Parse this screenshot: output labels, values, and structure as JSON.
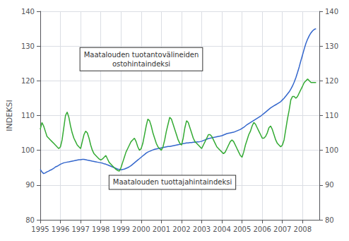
{
  "chart_data": {
    "type": "line",
    "ylabel": "INDEKSI",
    "xlim": [
      1995.0,
      2008.83
    ],
    "xticks": [
      1995,
      1996,
      1997,
      1998,
      1999,
      2000,
      2001,
      2002,
      2003,
      2004,
      2005,
      2006,
      2007,
      2008
    ],
    "ylim": [
      80,
      140
    ],
    "yticks": [
      80,
      90,
      100,
      110,
      120,
      130,
      140
    ],
    "y2lim": [
      80,
      140
    ],
    "y2ticks": [
      80,
      90,
      100,
      110,
      120,
      130,
      140
    ],
    "grid": true,
    "x": [
      1995.0,
      1995.083,
      1995.167,
      1995.25,
      1995.333,
      1995.417,
      1995.5,
      1995.583,
      1995.667,
      1995.75,
      1995.833,
      1995.917,
      1996.0,
      1996.083,
      1996.167,
      1996.25,
      1996.333,
      1996.417,
      1996.5,
      1996.583,
      1996.667,
      1996.75,
      1996.833,
      1996.917,
      1997.0,
      1997.083,
      1997.167,
      1997.25,
      1997.333,
      1997.417,
      1997.5,
      1997.583,
      1997.667,
      1997.75,
      1997.833,
      1997.917,
      1998.0,
      1998.083,
      1998.167,
      1998.25,
      1998.333,
      1998.417,
      1998.5,
      1998.583,
      1998.667,
      1998.75,
      1998.833,
      1998.917,
      1999.0,
      1999.083,
      1999.167,
      1999.25,
      1999.333,
      1999.417,
      1999.5,
      1999.583,
      1999.667,
      1999.75,
      1999.833,
      1999.917,
      2000.0,
      2000.083,
      2000.167,
      2000.25,
      2000.333,
      2000.417,
      2000.5,
      2000.583,
      2000.667,
      2000.75,
      2000.833,
      2000.917,
      2001.0,
      2001.083,
      2001.167,
      2001.25,
      2001.333,
      2001.417,
      2001.5,
      2001.583,
      2001.667,
      2001.75,
      2001.833,
      2001.917,
      2002.0,
      2002.083,
      2002.167,
      2002.25,
      2002.333,
      2002.417,
      2002.5,
      2002.583,
      2002.667,
      2002.75,
      2002.833,
      2002.917,
      2003.0,
      2003.083,
      2003.167,
      2003.25,
      2003.333,
      2003.417,
      2003.5,
      2003.583,
      2003.667,
      2003.75,
      2003.833,
      2003.917,
      2004.0,
      2004.083,
      2004.167,
      2004.25,
      2004.333,
      2004.417,
      2004.5,
      2004.583,
      2004.667,
      2004.75,
      2004.833,
      2004.917,
      2005.0,
      2005.083,
      2005.167,
      2005.25,
      2005.333,
      2005.417,
      2005.5,
      2005.583,
      2005.667,
      2005.75,
      2005.833,
      2005.917,
      2006.0,
      2006.083,
      2006.167,
      2006.25,
      2006.333,
      2006.417,
      2006.5,
      2006.583,
      2006.667,
      2006.75,
      2006.833,
      2006.917,
      2007.0,
      2007.083,
      2007.167,
      2007.25,
      2007.333,
      2007.417,
      2007.5,
      2007.583,
      2007.667,
      2007.75,
      2007.833,
      2007.917,
      2008.0,
      2008.083,
      2008.167,
      2008.25,
      2008.333,
      2008.417,
      2008.5,
      2008.583,
      2008.667
    ],
    "series": [
      {
        "color": "#3366CC",
        "values": [
          94.5,
          93.8,
          93.3,
          93.5,
          93.8,
          94.0,
          94.3,
          94.5,
          94.8,
          95.2,
          95.4,
          95.7,
          96.0,
          96.2,
          96.4,
          96.5,
          96.6,
          96.7,
          96.8,
          96.9,
          97.0,
          97.1,
          97.2,
          97.3,
          97.3,
          97.4,
          97.4,
          97.3,
          97.2,
          97.1,
          97.0,
          96.9,
          96.8,
          96.7,
          96.6,
          96.5,
          96.4,
          96.3,
          96.1,
          96.0,
          95.8,
          95.6,
          95.4,
          95.2,
          95.0,
          94.8,
          94.6,
          94.5,
          94.4,
          94.5,
          94.6,
          94.8,
          95.0,
          95.3,
          95.6,
          96.0,
          96.4,
          96.8,
          97.2,
          97.6,
          98.0,
          98.4,
          98.8,
          99.2,
          99.5,
          99.7,
          99.9,
          100.1,
          100.3,
          100.4,
          100.5,
          100.6,
          100.7,
          100.8,
          100.9,
          101.0,
          101.1,
          101.1,
          101.2,
          101.3,
          101.4,
          101.5,
          101.6,
          101.7,
          101.8,
          101.9,
          102.0,
          102.1,
          102.1,
          102.2,
          102.2,
          102.3,
          102.3,
          102.4,
          102.4,
          102.5,
          102.6,
          102.8,
          103.0,
          103.2,
          103.4,
          103.5,
          103.6,
          103.7,
          103.8,
          103.9,
          104.0,
          104.1,
          104.2,
          104.4,
          104.6,
          104.8,
          104.9,
          105.0,
          105.1,
          105.2,
          105.4,
          105.6,
          105.8,
          106.0,
          106.3,
          106.6,
          107.0,
          107.4,
          107.7,
          108.0,
          108.3,
          108.6,
          108.9,
          109.2,
          109.5,
          109.8,
          110.2,
          110.6,
          111.0,
          111.4,
          111.8,
          112.2,
          112.5,
          112.8,
          113.1,
          113.4,
          113.7,
          114.0,
          114.5,
          115.0,
          115.6,
          116.2,
          116.8,
          117.6,
          118.5,
          119.6,
          120.9,
          122.4,
          124.0,
          125.8,
          127.5,
          129.2,
          130.8,
          132.0,
          133.0,
          133.8,
          134.4,
          134.8,
          135.0
        ]
      },
      {
        "color": "#33AA33",
        "values": [
          106.0,
          108.0,
          107.0,
          105.5,
          104.0,
          103.5,
          103.0,
          102.5,
          102.0,
          101.5,
          101.0,
          100.5,
          101.0,
          103.0,
          106.5,
          110.0,
          111.0,
          109.5,
          107.0,
          105.0,
          103.5,
          102.5,
          101.5,
          101.0,
          100.5,
          102.5,
          104.5,
          105.5,
          105.0,
          103.5,
          101.5,
          100.0,
          99.0,
          98.5,
          98.0,
          97.5,
          97.2,
          97.5,
          98.0,
          98.5,
          97.5,
          96.5,
          96.0,
          95.5,
          95.0,
          94.5,
          94.2,
          94.0,
          95.0,
          96.5,
          98.0,
          99.5,
          100.5,
          101.5,
          102.5,
          103.0,
          103.5,
          102.5,
          101.0,
          100.0,
          100.5,
          102.0,
          104.5,
          107.0,
          109.0,
          108.5,
          107.0,
          105.0,
          103.5,
          102.0,
          101.0,
          100.5,
          100.0,
          101.0,
          103.0,
          105.5,
          107.5,
          109.5,
          109.0,
          107.5,
          106.0,
          104.5,
          103.0,
          102.0,
          101.5,
          103.5,
          106.5,
          108.5,
          108.0,
          106.5,
          105.0,
          103.5,
          102.5,
          102.0,
          101.5,
          101.0,
          100.5,
          101.5,
          102.5,
          103.5,
          104.5,
          104.5,
          104.0,
          103.0,
          102.0,
          101.0,
          100.5,
          100.0,
          99.5,
          99.0,
          99.5,
          100.5,
          101.5,
          102.5,
          103.0,
          102.5,
          101.5,
          100.5,
          99.5,
          98.5,
          98.0,
          99.5,
          101.5,
          103.0,
          104.5,
          105.5,
          107.0,
          108.0,
          107.5,
          106.5,
          105.5,
          104.5,
          103.5,
          103.5,
          104.0,
          105.0,
          106.5,
          107.0,
          106.0,
          104.5,
          103.0,
          102.0,
          101.5,
          101.0,
          101.5,
          103.0,
          106.0,
          109.0,
          111.5,
          114.5,
          115.5,
          115.5,
          115.0,
          115.5,
          116.5,
          117.5,
          118.5,
          119.5,
          120.0,
          120.5,
          120.0,
          119.5,
          119.5,
          119.5,
          119.5
        ]
      }
    ],
    "annotations": [
      {
        "text": "Maatalouden tuotantovälineiden\nostohintaindeksi"
      },
      {
        "text": "Maatalouden tuottajahintaindeksi"
      }
    ]
  }
}
